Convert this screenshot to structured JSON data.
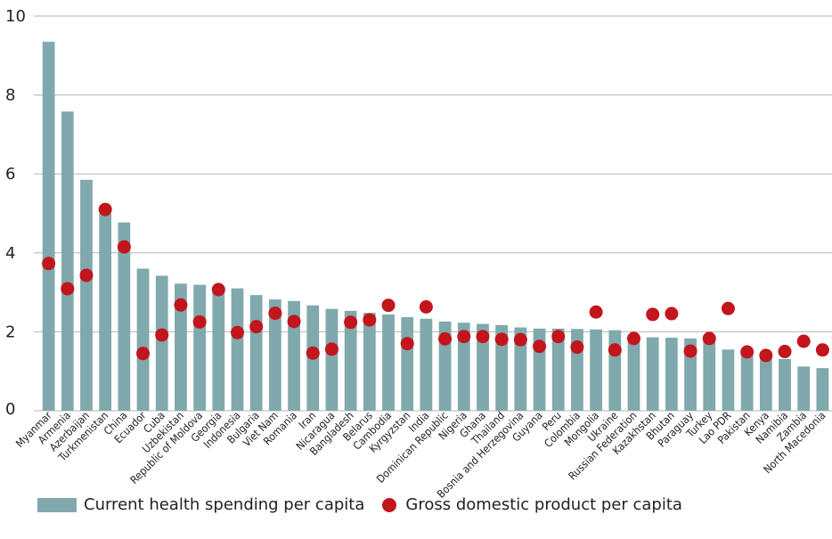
{
  "chart_data": {
    "type": "bar",
    "categories": [
      "Myanmar",
      "Armenia",
      "Azerbaijan",
      "Turkmenistan",
      "China",
      "Ecuador",
      "Cuba",
      "Uzbekistan",
      "Republic of Moldova",
      "Georgia",
      "Indonesia",
      "Bulgaria",
      "Viet Nam",
      "Romania",
      "Iran",
      "Nicaragua",
      "Bangladesh",
      "Belarus",
      "Cambodia",
      "Kyrgyzstan",
      "India",
      "Dominican Republic",
      "Nigeria",
      "Ghana",
      "Thailand",
      "Bosnia and Herzegovina",
      "Guyana",
      "Peru",
      "Colombia",
      "Mongolia",
      "Ukraine",
      "Russian Federation",
      "Kazakhstan",
      "Bhutan",
      "Paraguay",
      "Turkey",
      "Lao PDR",
      "Pakistan",
      "Kenya",
      "Namibia",
      "Zambia",
      "North Macedonia"
    ],
    "series": [
      {
        "name": "Current health spending per capita",
        "kind": "bar",
        "color": "#7fa9ad",
        "values": [
          9.35,
          7.58,
          5.85,
          5.0,
          4.77,
          3.6,
          3.42,
          3.22,
          3.19,
          3.15,
          3.1,
          2.93,
          2.82,
          2.78,
          2.67,
          2.58,
          2.53,
          2.48,
          2.44,
          2.37,
          2.33,
          2.26,
          2.23,
          2.2,
          2.17,
          2.11,
          2.08,
          2.08,
          2.07,
          2.06,
          2.04,
          1.87,
          1.86,
          1.85,
          1.83,
          1.8,
          1.55,
          1.5,
          1.4,
          1.31,
          1.12,
          1.08
        ]
      },
      {
        "name": "Gross domestic product per capita",
        "kind": "dot",
        "color": "#c2151c",
        "values": [
          3.73,
          3.09,
          3.43,
          5.1,
          4.15,
          1.45,
          1.92,
          2.68,
          2.25,
          3.07,
          1.98,
          2.13,
          2.47,
          2.26,
          1.46,
          1.56,
          2.24,
          2.3,
          2.67,
          1.7,
          2.63,
          1.82,
          1.88,
          1.88,
          1.81,
          1.8,
          1.63,
          1.88,
          1.61,
          2.5,
          1.54,
          1.83,
          2.44,
          2.46,
          1.51,
          1.83,
          2.59,
          1.49,
          1.4,
          1.5,
          1.76,
          1.54
        ]
      }
    ],
    "title": "",
    "xlabel": "",
    "ylabel": "",
    "ylim": [
      0,
      10
    ],
    "yticks": [
      "0",
      "2",
      "4",
      "6",
      "8",
      "10"
    ],
    "grid": true,
    "legend_position": "bottom-left"
  }
}
